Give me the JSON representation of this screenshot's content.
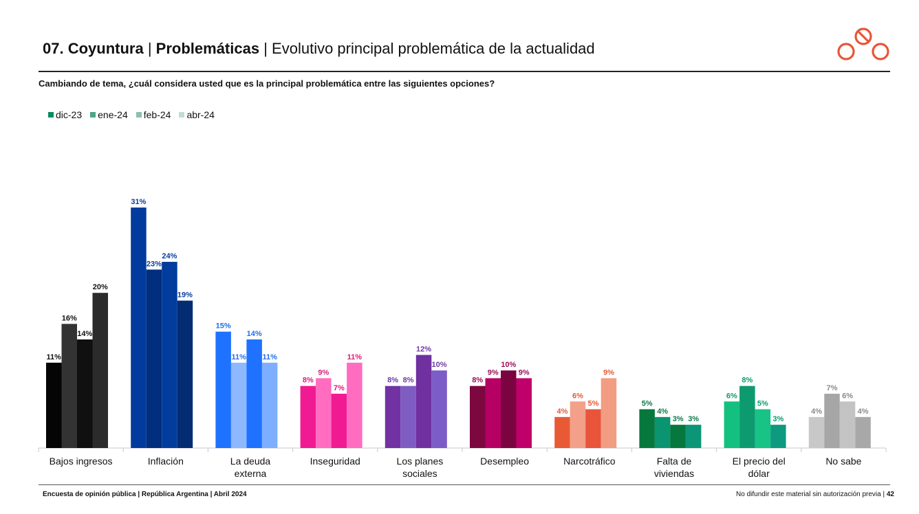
{
  "header": {
    "section": "07. Coyuntura",
    "topic": "Problemáticas",
    "title": "Evolutivo principal problemática de la actualidad",
    "separator": "|",
    "logo_icon": "linked-circles-logo-icon",
    "logo_color": "#E8553A"
  },
  "question": "Cambiando de tema, ¿cuál considera usted que es la principal problemática entre las siguientes opciones?",
  "legend": [
    {
      "label": "dic-23",
      "color": "#0E8A5F"
    },
    {
      "label": "ene-24",
      "color": "#4FA58C"
    },
    {
      "label": "feb-24",
      "color": "#8CBFAE"
    },
    {
      "label": "abr-24",
      "color": "#C3DCD3"
    }
  ],
  "chart_data": {
    "type": "bar",
    "title": "",
    "xlabel": "",
    "ylabel": "",
    "series_names": [
      "dic-23",
      "ene-24",
      "feb-24",
      "abr-24"
    ],
    "ylim": [
      0,
      31
    ],
    "grid": false,
    "legend_position": "top-left",
    "categories": [
      {
        "label": [
          "Bajos ingresos"
        ],
        "values": [
          11,
          16,
          14,
          20
        ],
        "labels": [
          "11%",
          "16%",
          "14%",
          "20%"
        ],
        "colors": [
          "#050505",
          "#333333",
          "#101010",
          "#2B2B2B"
        ],
        "label_color": "#111111"
      },
      {
        "label": [
          "Inflación"
        ],
        "values": [
          31,
          23,
          24,
          19
        ],
        "labels": [
          "31%",
          "23%",
          "24%",
          "19%"
        ],
        "colors": [
          "#023B9E",
          "#022E7E",
          "#023C9C",
          "#032C72"
        ],
        "label_color": "#0B3C9E"
      },
      {
        "label": [
          "La deuda",
          "externa"
        ],
        "values": [
          15,
          11,
          14,
          11
        ],
        "labels": [
          "15%",
          "11%",
          "14%",
          "11%"
        ],
        "colors": [
          "#1F72FF",
          "#8DB7FF",
          "#1F72FF",
          "#7DAEFF"
        ],
        "label_color": "#1F6EEB"
      },
      {
        "label": [
          "Inseguridad"
        ],
        "values": [
          8,
          9,
          7,
          11
        ],
        "labels": [
          "8%",
          "9%",
          "7%",
          "11%"
        ],
        "colors": [
          "#F01A92",
          "#FF6CC0",
          "#F01A92",
          "#FF6CC0"
        ],
        "label_color": "#E0197F"
      },
      {
        "label": [
          "Los planes",
          "sociales"
        ],
        "values": [
          8,
          8,
          12,
          10
        ],
        "labels": [
          "8%",
          "8%",
          "12%",
          "10%"
        ],
        "colors": [
          "#7232A3",
          "#7F5CC2",
          "#7030A0",
          "#7C5CC6"
        ],
        "label_color": "#6E3AA8"
      },
      {
        "label": [
          "Desempleo"
        ],
        "values": [
          8,
          9,
          10,
          9
        ],
        "labels": [
          "8%",
          "9%",
          "10%",
          "9%"
        ],
        "colors": [
          "#7D0840",
          "#B60063",
          "#7A0340",
          "#C0006A"
        ],
        "label_color": "#9A0F58"
      },
      {
        "label": [
          "Narcotráfico"
        ],
        "values": [
          4,
          6,
          5,
          9
        ],
        "labels": [
          "4%",
          "6%",
          "5%",
          "9%"
        ],
        "colors": [
          "#E85A35",
          "#F2A089",
          "#E8553A",
          "#F29C82"
        ],
        "label_color": "#E35A35"
      },
      {
        "label": [
          "Falta de",
          "viviendas"
        ],
        "values": [
          5,
          4,
          3,
          3
        ],
        "labels": [
          "5%",
          "4%",
          "3%",
          "3%"
        ],
        "colors": [
          "#06773D",
          "#0A9470",
          "#06773D",
          "#0D9577"
        ],
        "label_color": "#0C7A4A"
      },
      {
        "label": [
          "El precio del",
          "dólar"
        ],
        "values": [
          6,
          8,
          5,
          3
        ],
        "labels": [
          "6%",
          "8%",
          "5%",
          "3%"
        ],
        "colors": [
          "#13C07F",
          "#0E9A6F",
          "#17C385",
          "#0E9A7F"
        ],
        "label_color": "#0E9A6F"
      },
      {
        "label": [
          "No sabe"
        ],
        "values": [
          4,
          7,
          6,
          4
        ],
        "labels": [
          "4%",
          "7%",
          "6%",
          "4%"
        ],
        "colors": [
          "#C8C8C8",
          "#A6A6A6",
          "#C3C3C3",
          "#A8A8A8"
        ],
        "label_color": "#8A8A8A"
      }
    ]
  },
  "footer": {
    "left": "Encuesta de opinión pública | República Argentina | Abril 2024",
    "right_text": "No difundir este material sin autorización previa |",
    "page_number": "42"
  }
}
